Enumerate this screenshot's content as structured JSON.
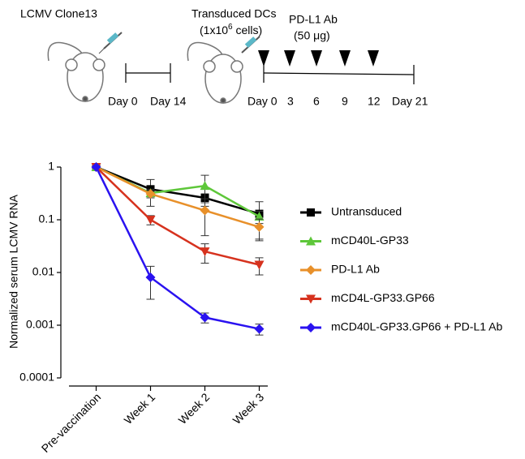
{
  "schematic": {
    "step1": {
      "title": "LCMV Clone13",
      "start": "Day 0",
      "end": "Day 14"
    },
    "step2": {
      "title": "Transduced DCs",
      "cells": {
        "prefix": "(1x10",
        "superscript": "6",
        "suffix": " cells)"
      },
      "antibody": "PD-L1 Ab",
      "dose": "(50 μg)",
      "days": [
        "Day 0",
        "3",
        "6",
        "9",
        "12",
        "Day 21"
      ]
    }
  },
  "chart_data": {
    "type": "line",
    "y_label": "Normalized serum LCMV RNA",
    "categories": [
      "Pre-vaccination",
      "Week 1",
      "Week 2",
      "Week 3"
    ],
    "ylim": [
      0.0001,
      1
    ],
    "yticks": [
      1,
      0.1,
      0.01,
      0.001,
      0.0001
    ],
    "log_scale": true,
    "grid": false,
    "legend": "right",
    "series": [
      {
        "name": "Untransduced",
        "color": "#000000",
        "marker": "square",
        "values": [
          1,
          0.38,
          0.26,
          0.13
        ],
        "errors": [
          null,
          0.2,
          0.05,
          0.09
        ]
      },
      {
        "name": "mCD40L-GP33",
        "color": "#5ec73a",
        "marker": "triangle-up",
        "values": [
          1,
          0.32,
          0.44,
          0.115
        ],
        "errors": [
          null,
          0.06,
          0.26,
          0.03
        ]
      },
      {
        "name": "PD-L1 Ab",
        "color": "#e8902a",
        "marker": "diamond",
        "values": [
          1,
          0.31,
          0.15,
          0.073
        ],
        "errors": [
          null,
          0.05,
          0.1,
          0.03
        ]
      },
      {
        "name": "mCD4L-GP33.GP66",
        "color": "#d6321e",
        "marker": "triangle-down",
        "values": [
          1,
          0.1,
          0.025,
          0.014
        ],
        "errors": [
          null,
          0.02,
          0.01,
          0.005
        ]
      },
      {
        "name": "mCD40L-GP33.GP66 + PD-L1 Ab",
        "color": "#2a12f0",
        "marker": "diamond",
        "values": [
          1,
          0.0081,
          0.0014,
          0.00085
        ],
        "errors": [
          null,
          0.005,
          0.0003,
          0.0002
        ]
      }
    ]
  }
}
